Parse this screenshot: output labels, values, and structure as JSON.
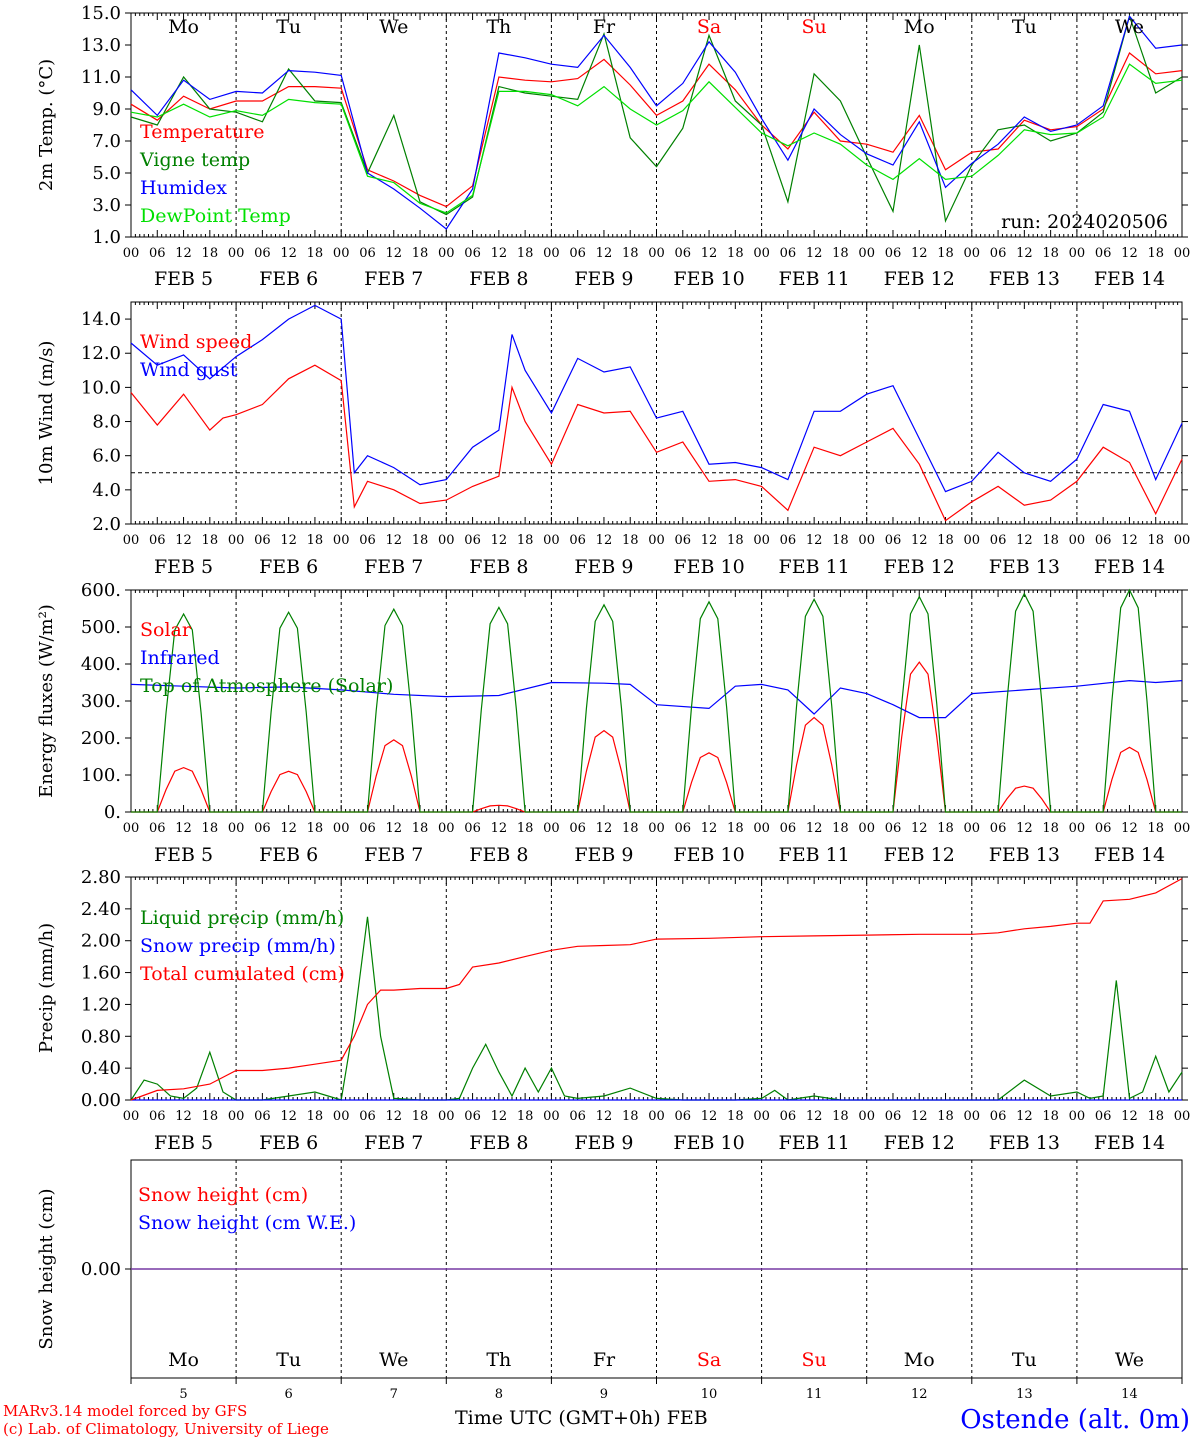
{
  "run_label": "run: 2024020506",
  "footer": {
    "model_line": "MARv3.14 model forced by GFS",
    "credit_line": "(c) Lab. of Climatology, University of Liege",
    "time_axis_label": "Time UTC (GMT+0h) FEB",
    "station": "Ostende (alt. 0m)"
  },
  "days": {
    "weekdays": [
      "Mo",
      "Tu",
      "We",
      "Th",
      "Fr",
      "Sa",
      "Su",
      "Mo",
      "Tu",
      "We"
    ],
    "weekend_flags": [
      false,
      false,
      false,
      false,
      false,
      true,
      true,
      false,
      false,
      false
    ],
    "date_labels": [
      "FEB  5",
      "FEB  6",
      "FEB  7",
      "FEB  8",
      "FEB  9",
      "FEB 10",
      "FEB 11",
      "FEB 12",
      "FEB 13",
      "FEB 14"
    ],
    "day_numbers": [
      "5",
      "6",
      "7",
      "8",
      "9",
      "10",
      "11",
      "12",
      "13",
      "14"
    ],
    "hour_ticks": [
      "00",
      "06",
      "12",
      "18"
    ],
    "final_hour": "00"
  },
  "colors": {
    "red": "#ff0000",
    "green": "#008000",
    "blue": "#0000ff",
    "lightgreen": "#00e000",
    "purple": "#7030a0",
    "weekend": "#ff0000",
    "station": "#0000ff"
  },
  "chart_data": [
    {
      "type": "line",
      "ylabel": "2m Temp. (°C)",
      "ylim": [
        1.0,
        15.0
      ],
      "yticks": [
        "1.0",
        "3.0",
        "5.0",
        "7.0",
        "9.0",
        "11.0",
        "13.0",
        "15.0"
      ],
      "x_unit": "hours since 2024-02-05 00 UTC",
      "series": [
        {
          "name": "Temperature",
          "color": "red",
          "x": [
            0,
            6,
            12,
            18,
            24,
            30,
            36,
            42,
            48,
            54,
            60,
            66,
            72,
            78,
            84,
            90,
            96,
            102,
            108,
            114,
            120,
            126,
            132,
            138,
            144,
            150,
            156,
            162,
            168,
            174,
            180,
            186,
            192,
            198,
            204,
            210,
            216,
            222,
            228,
            234,
            240
          ],
          "y": [
            9.3,
            8.3,
            9.8,
            9.0,
            9.5,
            9.5,
            10.4,
            10.4,
            10.3,
            5.2,
            4.5,
            3.6,
            2.9,
            4.2,
            11.0,
            10.8,
            10.7,
            10.9,
            12.1,
            10.5,
            8.6,
            9.5,
            11.8,
            10.2,
            8.0,
            6.5,
            8.8,
            7.0,
            6.8,
            6.3,
            8.6,
            5.2,
            6.3,
            6.5,
            8.3,
            7.7,
            7.9,
            9.0,
            12.5,
            11.2,
            11.4
          ]
        },
        {
          "name": "Vigne temp",
          "color": "green",
          "x": [
            0,
            6,
            12,
            18,
            24,
            30,
            36,
            42,
            48,
            54,
            60,
            66,
            72,
            78,
            84,
            90,
            96,
            102,
            108,
            114,
            120,
            126,
            132,
            138,
            144,
            150,
            156,
            162,
            168,
            174,
            180,
            186,
            192,
            198,
            204,
            210,
            216,
            222,
            228,
            234,
            240
          ],
          "y": [
            8.5,
            8.0,
            11.0,
            9.0,
            8.8,
            8.2,
            11.5,
            9.5,
            9.4,
            5.0,
            8.6,
            3.2,
            2.4,
            3.5,
            10.4,
            10.0,
            9.8,
            9.6,
            13.7,
            7.2,
            5.4,
            7.8,
            13.6,
            9.5,
            8.0,
            3.2,
            11.2,
            9.5,
            6.0,
            2.6,
            13.0,
            2.0,
            5.5,
            7.7,
            8.0,
            7.0,
            7.5,
            8.8,
            14.8,
            10.0,
            11.0
          ]
        },
        {
          "name": "Humidex",
          "color": "blue",
          "x": [
            0,
            6,
            12,
            18,
            24,
            30,
            36,
            42,
            48,
            54,
            60,
            66,
            72,
            78,
            84,
            90,
            96,
            102,
            108,
            114,
            120,
            126,
            132,
            138,
            144,
            150,
            156,
            162,
            168,
            174,
            180,
            186,
            192,
            198,
            204,
            210,
            216,
            222,
            228,
            234,
            240
          ],
          "y": [
            10.2,
            8.6,
            10.8,
            9.6,
            10.1,
            10.0,
            11.4,
            11.3,
            11.1,
            5.0,
            4.0,
            2.8,
            1.5,
            4.0,
            12.5,
            12.2,
            11.8,
            11.6,
            13.6,
            11.6,
            9.2,
            10.6,
            13.2,
            11.3,
            8.4,
            5.8,
            9.0,
            7.4,
            6.2,
            5.5,
            8.2,
            4.1,
            5.6,
            6.8,
            8.5,
            7.6,
            8.0,
            9.2,
            14.8,
            12.8,
            13.0
          ]
        },
        {
          "name": "DewPoint Temp",
          "color": "lightgreen",
          "x": [
            0,
            6,
            12,
            18,
            24,
            30,
            36,
            42,
            48,
            54,
            60,
            66,
            72,
            78,
            84,
            90,
            96,
            102,
            108,
            114,
            120,
            126,
            132,
            138,
            144,
            150,
            156,
            162,
            168,
            174,
            180,
            186,
            192,
            198,
            204,
            210,
            216,
            222,
            228,
            234,
            240
          ],
          "y": [
            8.8,
            8.5,
            9.3,
            8.5,
            8.9,
            8.6,
            9.6,
            9.4,
            9.3,
            4.8,
            4.4,
            3.1,
            2.5,
            3.6,
            10.1,
            10.1,
            9.9,
            9.2,
            10.4,
            9.0,
            8.0,
            8.9,
            10.7,
            9.1,
            7.5,
            6.7,
            7.5,
            6.8,
            5.5,
            4.6,
            5.9,
            4.6,
            4.8,
            6.1,
            7.7,
            7.4,
            7.5,
            8.5,
            11.8,
            10.6,
            10.8
          ]
        }
      ]
    },
    {
      "type": "line",
      "ylabel": "10m Wind (m/s)",
      "ylim": [
        2.0,
        15.0
      ],
      "yticks": [
        "2.0",
        "4.0",
        "6.0",
        "8.0",
        "10.0",
        "12.0",
        "14.0"
      ],
      "reference_line": 5.0,
      "series": [
        {
          "name": "Wind speed",
          "color": "red",
          "x": [
            0,
            6,
            12,
            18,
            21,
            24,
            30,
            36,
            42,
            48,
            51,
            54,
            60,
            66,
            72,
            78,
            84,
            87,
            90,
            96,
            102,
            108,
            114,
            120,
            126,
            132,
            138,
            144,
            150,
            156,
            162,
            168,
            174,
            180,
            186,
            192,
            198,
            204,
            210,
            216,
            222,
            228,
            234,
            240
          ],
          "y": [
            9.7,
            7.8,
            9.6,
            7.5,
            8.2,
            8.4,
            9.0,
            10.5,
            11.3,
            10.4,
            3.0,
            4.5,
            4.0,
            3.2,
            3.4,
            4.2,
            4.8,
            10.0,
            8.0,
            5.5,
            9.0,
            8.5,
            8.6,
            6.2,
            6.8,
            4.5,
            4.6,
            4.2,
            2.8,
            6.5,
            6.0,
            6.8,
            7.6,
            5.5,
            2.2,
            3.3,
            4.2,
            3.1,
            3.4,
            4.5,
            6.5,
            5.6,
            2.6,
            5.8
          ]
        },
        {
          "name": "Wind gust",
          "color": "blue",
          "x": [
            0,
            6,
            12,
            18,
            24,
            30,
            36,
            42,
            48,
            51,
            54,
            60,
            66,
            72,
            78,
            84,
            87,
            90,
            96,
            102,
            108,
            114,
            120,
            126,
            132,
            138,
            144,
            150,
            156,
            162,
            168,
            174,
            180,
            186,
            192,
            198,
            204,
            210,
            216,
            222,
            228,
            234,
            240
          ],
          "y": [
            12.6,
            11.3,
            11.9,
            10.5,
            11.8,
            12.8,
            14.0,
            14.8,
            14.0,
            5.0,
            6.0,
            5.3,
            4.3,
            4.6,
            6.5,
            7.5,
            13.1,
            11.0,
            8.5,
            11.7,
            10.9,
            11.2,
            8.2,
            8.6,
            5.5,
            5.6,
            5.3,
            4.6,
            8.6,
            8.6,
            9.6,
            10.1,
            7.0,
            3.9,
            4.5,
            6.2,
            5.0,
            4.5,
            5.8,
            9.0,
            8.6,
            4.6,
            7.9
          ]
        }
      ]
    },
    {
      "type": "line",
      "ylabel": "Energy fluxes (W/m²)",
      "ylim": [
        0,
        600
      ],
      "yticks": [
        "0.",
        "100.",
        "200.",
        "300.",
        "400.",
        "500.",
        "600."
      ],
      "series": [
        {
          "name": "Solar",
          "color": "red",
          "daily_peak_hour": 12,
          "daily_peaks": [
            120,
            110,
            195,
            18,
            220,
            160,
            255,
            405,
            70,
            175
          ]
        },
        {
          "name": "Infrared",
          "color": "blue",
          "x": [
            0,
            12,
            24,
            36,
            48,
            60,
            72,
            84,
            96,
            108,
            114,
            120,
            132,
            138,
            144,
            150,
            156,
            162,
            168,
            174,
            180,
            186,
            192,
            204,
            216,
            228,
            234,
            240
          ],
          "y": [
            345,
            340,
            335,
            338,
            330,
            318,
            312,
            315,
            350,
            348,
            345,
            290,
            280,
            340,
            345,
            330,
            265,
            335,
            320,
            290,
            255,
            255,
            320,
            330,
            340,
            355,
            350,
            355
          ]
        },
        {
          "name": "Top of Atmosphere (Solar)",
          "color": "green",
          "daily_peak_hour": 12,
          "daily_peaks": [
            535,
            540,
            548,
            553,
            560,
            568,
            575,
            582,
            590,
            600
          ]
        }
      ]
    },
    {
      "type": "line",
      "ylabel": "Precip (mm/h)",
      "ylim": [
        0.0,
        2.8
      ],
      "yticks": [
        "0.00",
        "0.40",
        "0.80",
        "1.20",
        "1.60",
        "2.00",
        "2.40",
        "2.80"
      ],
      "series": [
        {
          "name": "Liquid precip (mm/h)",
          "color": "green",
          "x": [
            0,
            3,
            6,
            9,
            12,
            15,
            18,
            21,
            24,
            30,
            36,
            42,
            45,
            48,
            51,
            54,
            57,
            60,
            66,
            72,
            75,
            78,
            81,
            84,
            87,
            90,
            93,
            96,
            99,
            102,
            108,
            114,
            120,
            126,
            132,
            138,
            144,
            147,
            150,
            156,
            162,
            168,
            174,
            180,
            186,
            192,
            198,
            204,
            210,
            216,
            219,
            222,
            225,
            228,
            231,
            234,
            237,
            240
          ],
          "y": [
            0,
            0.25,
            0.2,
            0.05,
            0.02,
            0.15,
            0.6,
            0.1,
            0,
            0,
            0.05,
            0.1,
            0.05,
            0,
            1.0,
            2.3,
            0.8,
            0.02,
            0,
            0,
            0.02,
            0.4,
            0.7,
            0.35,
            0.05,
            0.4,
            0.1,
            0.4,
            0.05,
            0.02,
            0.05,
            0.15,
            0.02,
            0,
            0,
            0,
            0.02,
            0.12,
            0,
            0.05,
            0,
            0,
            0,
            0,
            0,
            0,
            0,
            0.25,
            0.05,
            0.1,
            0.02,
            0.05,
            1.5,
            0.02,
            0.1,
            0.55,
            0.1,
            0.35
          ]
        },
        {
          "name": "Snow precip (mm/h)",
          "color": "blue",
          "x": [
            0,
            240
          ],
          "y": [
            0,
            0
          ]
        },
        {
          "name": "Total cumulated (cm)",
          "color": "red",
          "x": [
            0,
            6,
            12,
            18,
            24,
            30,
            36,
            42,
            48,
            51,
            54,
            57,
            60,
            66,
            72,
            75,
            78,
            84,
            90,
            96,
            102,
            108,
            114,
            120,
            132,
            144,
            156,
            168,
            180,
            192,
            198,
            204,
            210,
            216,
            219,
            222,
            228,
            234,
            240
          ],
          "y": [
            0,
            0.12,
            0.14,
            0.2,
            0.37,
            0.37,
            0.4,
            0.45,
            0.5,
            0.8,
            1.2,
            1.38,
            1.38,
            1.4,
            1.4,
            1.45,
            1.67,
            1.72,
            1.8,
            1.88,
            1.93,
            1.94,
            1.95,
            2.02,
            2.03,
            2.05,
            2.06,
            2.07,
            2.08,
            2.08,
            2.1,
            2.15,
            2.18,
            2.22,
            2.22,
            2.5,
            2.52,
            2.6,
            2.78
          ]
        }
      ]
    },
    {
      "type": "line",
      "ylabel": "Snow height (cm)",
      "yticks": [
        "0.00"
      ],
      "series": [
        {
          "name": "Snow height (cm)",
          "color": "red",
          "x": [
            0,
            240
          ],
          "y": [
            0,
            0
          ]
        },
        {
          "name": "Snow height (cm W.E.)",
          "color": "blue",
          "x": [
            0,
            240
          ],
          "y": [
            0,
            0
          ]
        }
      ]
    }
  ]
}
